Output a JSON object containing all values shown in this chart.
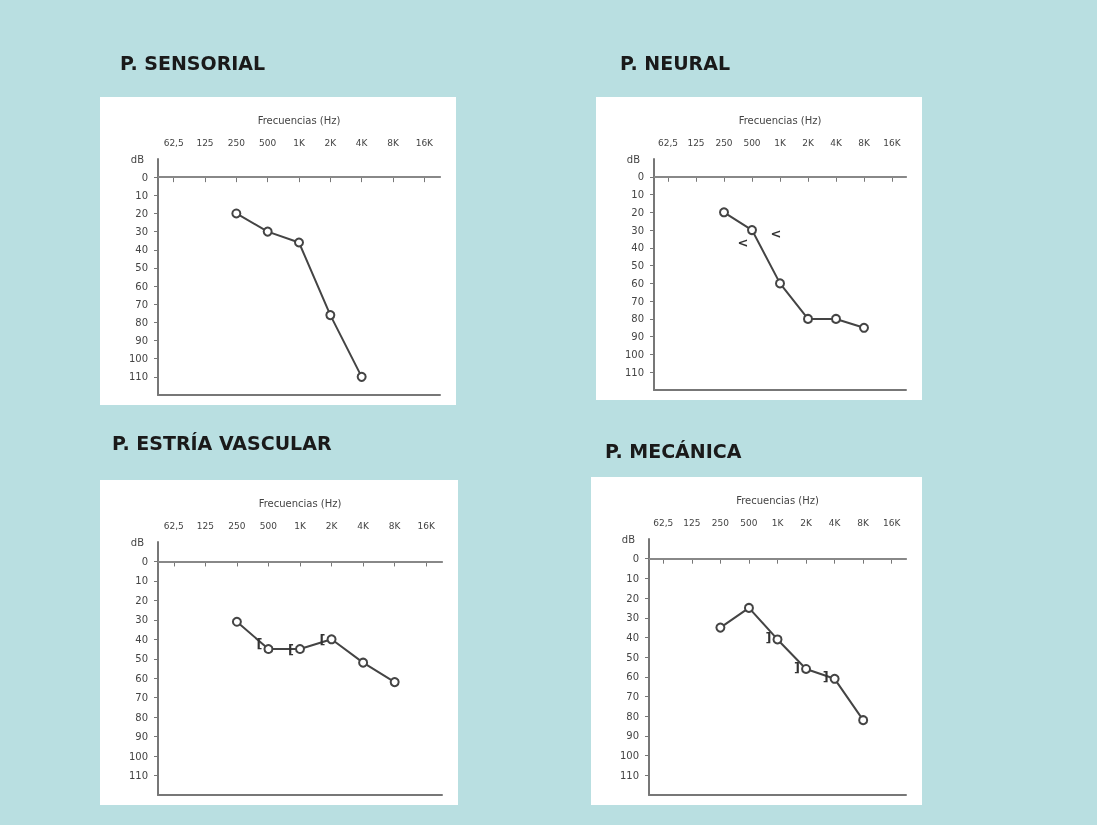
{
  "chart_data": [
    {
      "type": "line",
      "title": "P. SENSORIAL",
      "xlabel": "Frecuencias (Hz)",
      "ylabel": "dB",
      "categories": [
        "62,5",
        "125",
        "250",
        "500",
        "1K",
        "2K",
        "4K",
        "8K",
        "16K"
      ],
      "ylim": [
        120,
        -10
      ],
      "yticks": [
        0,
        10,
        20,
        30,
        40,
        50,
        60,
        70,
        80,
        90,
        100,
        110
      ],
      "grid": false,
      "marker": "circle",
      "line_style": "solid",
      "series": [
        {
          "color": "#444444",
          "values": [
            null,
            null,
            20,
            30,
            36,
            76,
            110,
            null,
            null
          ]
        }
      ],
      "ref_lines": [
        {
          "axis": "y",
          "value": 0,
          "color": "#888888"
        }
      ]
    },
    {
      "type": "line",
      "title": "P. NEURAL",
      "xlabel": "Frecuencias (Hz)",
      "ylabel": "dB",
      "categories": [
        "62,5",
        "125",
        "250",
        "500",
        "1K",
        "2K",
        "4K",
        "8K",
        "16K"
      ],
      "ylim": [
        120,
        -10
      ],
      "yticks": [
        0,
        10,
        20,
        30,
        40,
        50,
        60,
        70,
        80,
        90,
        100,
        110
      ],
      "grid": false,
      "marker": "circle",
      "line_style": "solid",
      "series": [
        {
          "color": "#444444",
          "values": [
            null,
            null,
            20,
            30,
            60,
            80,
            80,
            85,
            null
          ]
        }
      ],
      "ref_lines": [
        {
          "axis": "y",
          "value": 0,
          "color": "#888888"
        }
      ],
      "annotations": [
        {
          "text": "<",
          "x": "500",
          "y": 37
        },
        "<"
      ]
    },
    {
      "type": "line",
      "title": "P. ESTRÍA VASCULAR",
      "xlabel": "Frecuencias (Hz)",
      "ylabel": "dB",
      "categories": [
        "62,5",
        "125",
        "250",
        "500",
        "1K",
        "2K",
        "4K",
        "8K",
        "16K"
      ],
      "ylim": [
        120,
        -10
      ],
      "yticks": [
        0,
        10,
        20,
        30,
        40,
        50,
        60,
        70,
        80,
        90,
        100,
        110
      ],
      "grid": false,
      "marker": "circle",
      "line_style": "solid",
      "series": [
        {
          "color": "#444444",
          "values": [
            null,
            null,
            31,
            45,
            45,
            40,
            52,
            62,
            null
          ]
        }
      ],
      "ref_lines": [
        {
          "axis": "y",
          "value": 0,
          "color": "#888888"
        }
      ],
      "annotations": [
        {
          "text": "[",
          "x": "500",
          "y": 42
        },
        {
          "text": "[",
          "x": "1K",
          "y": 45
        },
        {
          "text": "[",
          "x": "2K",
          "y": 40
        }
      ]
    },
    {
      "type": "line",
      "title": "P. MECÁNICA",
      "xlabel": "Frecuencias (Hz)",
      "ylabel": "dB",
      "categories": [
        "62,5",
        "125",
        "250",
        "500",
        "1K",
        "2K",
        "4K",
        "8K",
        "16K"
      ],
      "ylim": [
        120,
        -10
      ],
      "yticks": [
        0,
        10,
        20,
        30,
        40,
        50,
        60,
        70,
        80,
        90,
        100,
        110
      ],
      "grid": false,
      "marker": "circle",
      "line_style": "solid",
      "series": [
        {
          "color": "#444444",
          "values": [
            null,
            null,
            35,
            25,
            41,
            56,
            61,
            82,
            null
          ]
        }
      ],
      "ref_lines": [
        {
          "axis": "y",
          "value": 0,
          "color": "#888888"
        }
      ],
      "annotations": [
        {
          "text": "]",
          "x": "1K",
          "y": 40
        },
        {
          "text": "]",
          "x": "2K",
          "y": 55
        },
        {
          "text": "]",
          "x": "4K",
          "y": 60
        }
      ]
    }
  ]
}
